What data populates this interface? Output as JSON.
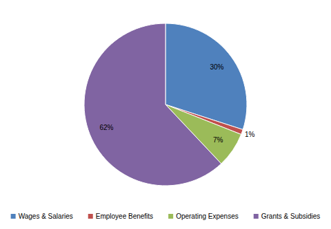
{
  "chart_data": {
    "type": "pie",
    "categories": [
      "Wages & Salaries",
      "Employee Benefits",
      "Operating Expenses",
      "Grants & Subsidies"
    ],
    "values": [
      30,
      1,
      7,
      62
    ],
    "value_labels": [
      "30%",
      "1%",
      "7%",
      "62%"
    ],
    "colors": [
      "#4f81bd",
      "#c0504d",
      "#9bbb59",
      "#8064a2"
    ],
    "data_labels": true,
    "legend": "bottom"
  }
}
